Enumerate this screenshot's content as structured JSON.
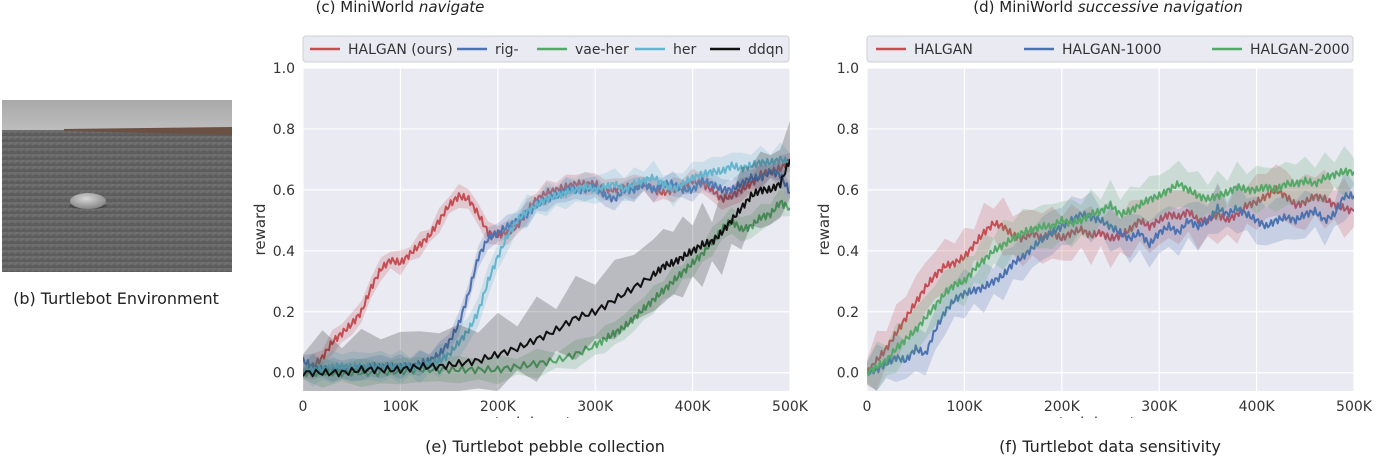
{
  "captions": {
    "env": "(b) Turtlebot Environment",
    "left_title_prefix": "(c) MiniWorld ",
    "left_title_em": "navigate",
    "right_title_prefix": "(d) MiniWorld ",
    "right_title_em": "successive navigation",
    "left_caption": "(e) Turtlebot pebble collection",
    "right_caption": "(f) Turtlebot data sensitivity"
  },
  "colors": {
    "red": "#c44e52",
    "blue": "#4c72b0",
    "green": "#55a868",
    "cyan": "#64b5cd",
    "black": "#111111",
    "panel_bg": "#eaeaf2"
  },
  "chart_data": [
    {
      "type": "line",
      "title": "(c) MiniWorld navigate",
      "caption": "(e) Turtlebot pebble collection",
      "xlabel": "training steps",
      "ylabel": "reward",
      "xlim": [
        0,
        500
      ],
      "ylim": [
        -0.06,
        1.0
      ],
      "xticks": [
        0,
        100,
        200,
        300,
        400,
        500
      ],
      "xtick_labels": [
        "0",
        "100K",
        "200K",
        "300K",
        "400K",
        "500K"
      ],
      "yticks": [
        0.0,
        0.2,
        0.4,
        0.6,
        0.8,
        1.0
      ],
      "ytick_labels": [
        "0.0",
        "0.2",
        "0.4",
        "0.6",
        "0.8",
        "1.0"
      ],
      "grid": true,
      "legend": "top",
      "series": [
        {
          "name": "HALGAN (ours)",
          "color": "#c44e52",
          "band": 0.03,
          "x": [
            0,
            10,
            20,
            30,
            40,
            50,
            60,
            70,
            80,
            90,
            100,
            110,
            120,
            130,
            140,
            150,
            160,
            170,
            180,
            190,
            200,
            210,
            220,
            230,
            240,
            250,
            260,
            270,
            280,
            290,
            300,
            310,
            320,
            330,
            340,
            350,
            360,
            370,
            380,
            390,
            400,
            410,
            420,
            430,
            440,
            450,
            460,
            470,
            480,
            490,
            500
          ],
          "y": [
            0,
            0.02,
            0.05,
            0.1,
            0.13,
            0.16,
            0.2,
            0.28,
            0.34,
            0.37,
            0.36,
            0.39,
            0.42,
            0.45,
            0.5,
            0.55,
            0.58,
            0.57,
            0.52,
            0.46,
            0.45,
            0.46,
            0.48,
            0.53,
            0.57,
            0.59,
            0.6,
            0.61,
            0.62,
            0.62,
            0.62,
            0.6,
            0.6,
            0.61,
            0.61,
            0.62,
            0.6,
            0.59,
            0.6,
            0.61,
            0.63,
            0.62,
            0.6,
            0.57,
            0.58,
            0.6,
            0.62,
            0.65,
            0.66,
            0.67,
            0.7
          ]
        },
        {
          "name": "rig-",
          "color": "#4c72b0",
          "band": 0.03,
          "x": [
            0,
            10,
            20,
            30,
            40,
            50,
            60,
            70,
            80,
            90,
            100,
            110,
            120,
            130,
            140,
            150,
            160,
            170,
            180,
            190,
            200,
            210,
            220,
            230,
            240,
            250,
            260,
            270,
            280,
            290,
            300,
            310,
            320,
            330,
            340,
            350,
            360,
            370,
            380,
            390,
            400,
            410,
            420,
            430,
            440,
            450,
            460,
            470,
            480,
            490,
            500
          ],
          "y": [
            0.04,
            0.02,
            0.01,
            0.01,
            0.01,
            0.01,
            0.01,
            0.02,
            0.02,
            0.02,
            0.02,
            0.02,
            0.03,
            0.04,
            0.06,
            0.1,
            0.16,
            0.26,
            0.38,
            0.44,
            0.46,
            0.48,
            0.5,
            0.52,
            0.55,
            0.57,
            0.58,
            0.6,
            0.6,
            0.6,
            0.61,
            0.58,
            0.57,
            0.6,
            0.6,
            0.62,
            0.6,
            0.62,
            0.62,
            0.6,
            0.6,
            0.63,
            0.62,
            0.6,
            0.6,
            0.62,
            0.64,
            0.64,
            0.66,
            0.65,
            0.59
          ]
        },
        {
          "name": "vae-her",
          "color": "#55a868",
          "band": 0.035,
          "x": [
            0,
            20,
            40,
            60,
            80,
            100,
            120,
            140,
            160,
            180,
            200,
            220,
            240,
            260,
            280,
            300,
            310,
            320,
            330,
            340,
            350,
            360,
            370,
            380,
            390,
            400,
            410,
            420,
            430,
            440,
            450,
            460,
            470,
            480,
            490,
            500
          ],
          "y": [
            0,
            0,
            0,
            0,
            0,
            0.005,
            0.01,
            0.01,
            0.01,
            0.01,
            0.01,
            0.02,
            0.03,
            0.04,
            0.06,
            0.09,
            0.11,
            0.13,
            0.15,
            0.18,
            0.21,
            0.24,
            0.27,
            0.3,
            0.33,
            0.36,
            0.39,
            0.43,
            0.47,
            0.5,
            0.47,
            0.48,
            0.51,
            0.52,
            0.56,
            0.54
          ]
        },
        {
          "name": "her",
          "color": "#64b5cd",
          "band": 0.04,
          "x": [
            0,
            10,
            20,
            30,
            40,
            50,
            60,
            70,
            80,
            90,
            100,
            110,
            120,
            130,
            140,
            150,
            160,
            170,
            180,
            190,
            200,
            210,
            220,
            230,
            240,
            250,
            260,
            270,
            280,
            290,
            300,
            310,
            320,
            330,
            340,
            350,
            360,
            370,
            380,
            390,
            400,
            410,
            420,
            430,
            440,
            450,
            460,
            470,
            480,
            490,
            500
          ],
          "y": [
            0.01,
            0.01,
            0.01,
            0.02,
            0.02,
            0.02,
            0.02,
            0.02,
            0.02,
            0.02,
            0.02,
            0.02,
            0.02,
            0.03,
            0.04,
            0.06,
            0.1,
            0.14,
            0.2,
            0.3,
            0.38,
            0.45,
            0.5,
            0.53,
            0.55,
            0.57,
            0.58,
            0.59,
            0.6,
            0.61,
            0.6,
            0.61,
            0.62,
            0.6,
            0.62,
            0.63,
            0.64,
            0.62,
            0.6,
            0.62,
            0.64,
            0.65,
            0.66,
            0.66,
            0.68,
            0.67,
            0.68,
            0.69,
            0.69,
            0.7,
            0.69
          ]
        },
        {
          "name": "ddqn",
          "color": "#111111",
          "band": 0.1,
          "x": [
            0,
            20,
            40,
            60,
            80,
            100,
            120,
            140,
            160,
            180,
            200,
            220,
            240,
            260,
            280,
            300,
            320,
            340,
            360,
            370,
            380,
            390,
            400,
            410,
            420,
            430,
            440,
            450,
            460,
            470,
            480,
            490,
            500
          ],
          "y": [
            0,
            0,
            0,
            0.01,
            0.01,
            0.01,
            0.02,
            0.02,
            0.03,
            0.04,
            0.06,
            0.08,
            0.11,
            0.14,
            0.18,
            0.2,
            0.24,
            0.28,
            0.32,
            0.35,
            0.36,
            0.38,
            0.4,
            0.42,
            0.43,
            0.46,
            0.5,
            0.54,
            0.58,
            0.6,
            0.6,
            0.62,
            0.7
          ]
        }
      ]
    },
    {
      "type": "line",
      "title": "(d) MiniWorld successive navigation",
      "caption": "(f) Turtlebot data sensitivity",
      "xlabel": "training steps",
      "ylabel": "reward",
      "xlim": [
        0,
        500
      ],
      "ylim": [
        -0.06,
        1.0
      ],
      "xticks": [
        0,
        100,
        200,
        300,
        400,
        500
      ],
      "xtick_labels": [
        "0",
        "100K",
        "200K",
        "300K",
        "400K",
        "500K"
      ],
      "yticks": [
        0.0,
        0.2,
        0.4,
        0.6,
        0.8,
        1.0
      ],
      "ytick_labels": [
        "0.0",
        "0.2",
        "0.4",
        "0.6",
        "0.8",
        "1.0"
      ],
      "grid": true,
      "legend": "top",
      "series": [
        {
          "name": "HALGAN",
          "color": "#c44e52",
          "band": 0.07,
          "x": [
            0,
            10,
            20,
            30,
            40,
            50,
            60,
            70,
            80,
            90,
            100,
            110,
            120,
            130,
            140,
            150,
            160,
            170,
            180,
            190,
            200,
            210,
            220,
            230,
            240,
            250,
            260,
            270,
            280,
            290,
            300,
            310,
            320,
            330,
            340,
            350,
            360,
            370,
            380,
            390,
            400,
            410,
            420,
            430,
            440,
            450,
            460,
            470,
            480,
            490,
            500
          ],
          "y": [
            0,
            0.04,
            0.08,
            0.13,
            0.18,
            0.23,
            0.28,
            0.32,
            0.35,
            0.36,
            0.38,
            0.42,
            0.46,
            0.49,
            0.48,
            0.45,
            0.44,
            0.46,
            0.44,
            0.46,
            0.44,
            0.46,
            0.47,
            0.45,
            0.46,
            0.44,
            0.45,
            0.47,
            0.5,
            0.48,
            0.5,
            0.52,
            0.51,
            0.53,
            0.5,
            0.5,
            0.52,
            0.5,
            0.52,
            0.55,
            0.56,
            0.58,
            0.6,
            0.58,
            0.55,
            0.56,
            0.58,
            0.57,
            0.55,
            0.54,
            0.53
          ]
        },
        {
          "name": "HALGAN-1000",
          "color": "#4c72b0",
          "band": 0.06,
          "x": [
            0,
            10,
            20,
            30,
            40,
            50,
            60,
            70,
            80,
            90,
            100,
            110,
            120,
            130,
            140,
            150,
            160,
            170,
            180,
            190,
            200,
            210,
            220,
            230,
            240,
            250,
            260,
            270,
            280,
            290,
            300,
            310,
            320,
            330,
            340,
            350,
            360,
            370,
            380,
            390,
            400,
            410,
            420,
            430,
            440,
            450,
            460,
            470,
            480,
            490,
            500
          ],
          "y": [
            0,
            0.01,
            0.03,
            0.05,
            0.04,
            0.08,
            0.06,
            0.14,
            0.2,
            0.24,
            0.26,
            0.27,
            0.28,
            0.3,
            0.32,
            0.36,
            0.38,
            0.41,
            0.44,
            0.46,
            0.48,
            0.5,
            0.52,
            0.51,
            0.5,
            0.48,
            0.46,
            0.44,
            0.46,
            0.42,
            0.46,
            0.48,
            0.46,
            0.5,
            0.48,
            0.5,
            0.54,
            0.52,
            0.54,
            0.52,
            0.5,
            0.48,
            0.5,
            0.51,
            0.5,
            0.52,
            0.53,
            0.5,
            0.52,
            0.58,
            0.58
          ]
        },
        {
          "name": "HALGAN-2000",
          "color": "#55a868",
          "band": 0.06,
          "x": [
            0,
            10,
            20,
            30,
            40,
            50,
            60,
            70,
            80,
            90,
            100,
            110,
            120,
            130,
            140,
            150,
            160,
            170,
            180,
            190,
            200,
            210,
            220,
            230,
            240,
            250,
            260,
            270,
            280,
            290,
            300,
            310,
            320,
            330,
            340,
            350,
            360,
            370,
            380,
            390,
            400,
            410,
            420,
            430,
            440,
            450,
            460,
            470,
            480,
            490,
            500
          ],
          "y": [
            0,
            0.02,
            0.04,
            0.08,
            0.11,
            0.14,
            0.18,
            0.22,
            0.26,
            0.29,
            0.3,
            0.34,
            0.37,
            0.4,
            0.42,
            0.44,
            0.46,
            0.47,
            0.48,
            0.48,
            0.5,
            0.49,
            0.5,
            0.52,
            0.53,
            0.55,
            0.52,
            0.53,
            0.55,
            0.57,
            0.58,
            0.6,
            0.62,
            0.6,
            0.58,
            0.57,
            0.58,
            0.59,
            0.61,
            0.6,
            0.6,
            0.61,
            0.6,
            0.62,
            0.62,
            0.63,
            0.62,
            0.64,
            0.65,
            0.66,
            0.66
          ]
        }
      ]
    }
  ]
}
